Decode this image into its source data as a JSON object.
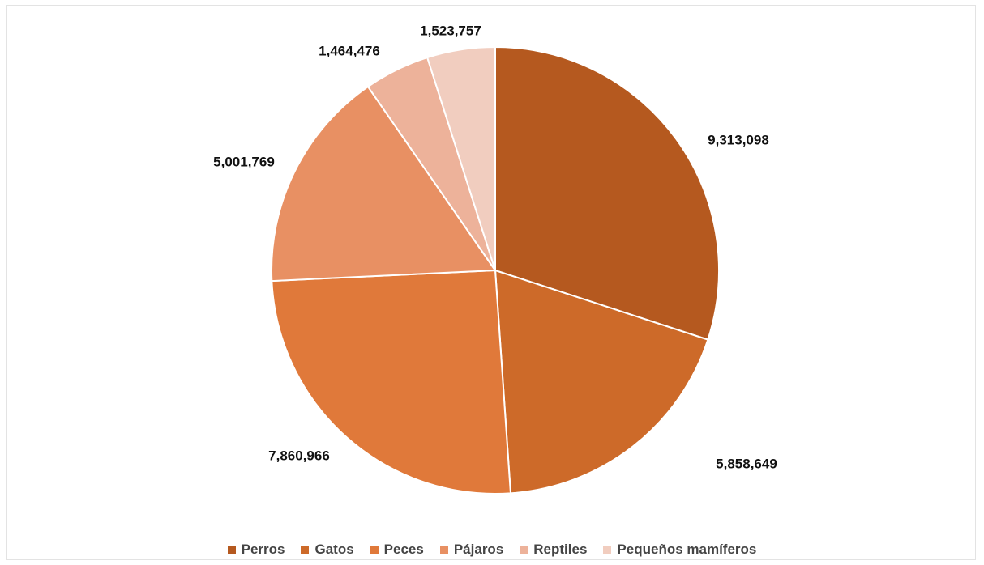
{
  "chart_data": {
    "type": "pie",
    "categories": [
      "Perros",
      "Gatos",
      "Peces",
      "Pájaros",
      "Reptiles",
      "Pequeños mamíferos"
    ],
    "values": [
      9313098,
      5858649,
      7860966,
      5001769,
      1464476,
      1523757
    ],
    "value_labels": [
      "9,313,098",
      "5,858,649",
      "7,860,966",
      "5,001,769",
      "1,464,476",
      "1,523,757"
    ],
    "colors": [
      "#b5591f",
      "#cd6a29",
      "#e0793a",
      "#e89063",
      "#edb29a",
      "#f1cdbf"
    ],
    "legend_position": "bottom",
    "slice_border_color": "#ffffff"
  }
}
